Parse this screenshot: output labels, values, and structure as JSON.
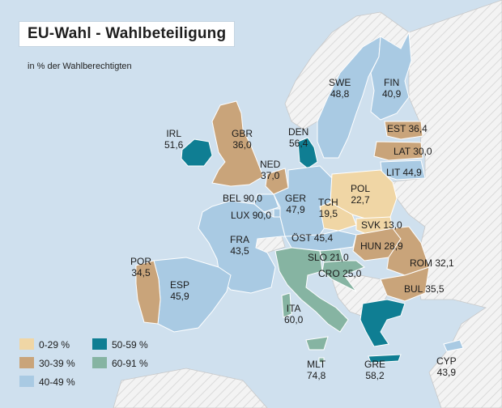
{
  "title": "EU-Wahl - Wahlbeteiligung",
  "subtitle": "in % der Wahlberechtigten",
  "colors": {
    "sea": "#cfe0ee",
    "non_eu": "#f3f3f3",
    "c0_29": "#f0d6a5",
    "c30_39": "#c9a47a",
    "c40_49": "#a9cae3",
    "c50_59": "#0f7e93",
    "c60_91": "#86b4a2"
  },
  "legend": [
    {
      "label": "0-29 %",
      "color": "#f0d6a5"
    },
    {
      "label": "30-39 %",
      "color": "#c9a47a"
    },
    {
      "label": "40-49 %",
      "color": "#a9cae3"
    },
    {
      "label": "50-59 %",
      "color": "#0f7e93"
    },
    {
      "label": "60-91 %",
      "color": "#86b4a2"
    }
  ],
  "countries": [
    {
      "code": "SWE",
      "value": "48,8"
    },
    {
      "code": "FIN",
      "value": "40,9"
    },
    {
      "code": "IRL",
      "value": "51,6"
    },
    {
      "code": "GBR",
      "value": "36,0"
    },
    {
      "code": "DEN",
      "value": "56,4"
    },
    {
      "code": "EST",
      "value": "36,4"
    },
    {
      "code": "LAT",
      "value": "30,0"
    },
    {
      "code": "LIT",
      "value": "44,9"
    },
    {
      "code": "NED",
      "value": "37,0"
    },
    {
      "code": "POL",
      "value": "22,7"
    },
    {
      "code": "BEL",
      "value": "90,0"
    },
    {
      "code": "LUX",
      "value": "90,0"
    },
    {
      "code": "GER",
      "value": "47,9"
    },
    {
      "code": "TCH",
      "value": "19,5"
    },
    {
      "code": "SVK",
      "value": "13,0"
    },
    {
      "code": "ÖST",
      "value": "45,4"
    },
    {
      "code": "HUN",
      "value": "28,9"
    },
    {
      "code": "FRA",
      "value": "43,5"
    },
    {
      "code": "SLO",
      "value": "21,0"
    },
    {
      "code": "ROM",
      "value": "32,1"
    },
    {
      "code": "CRO",
      "value": "25,0"
    },
    {
      "code": "POR",
      "value": "34,5"
    },
    {
      "code": "BUL",
      "value": "35,5"
    },
    {
      "code": "ESP",
      "value": "45,9"
    },
    {
      "code": "ITA",
      "value": "60,0"
    },
    {
      "code": "MLT",
      "value": "74,8"
    },
    {
      "code": "GRE",
      "value": "58,2"
    },
    {
      "code": "CYP",
      "value": "43,9"
    }
  ]
}
